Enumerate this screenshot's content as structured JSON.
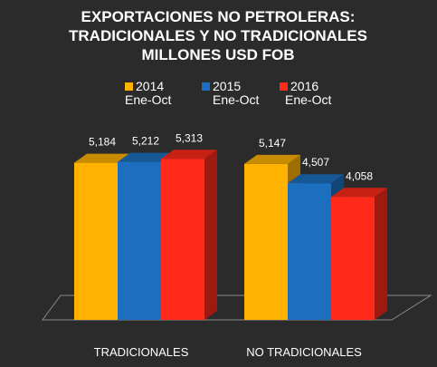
{
  "chart_data": {
    "type": "bar",
    "title": [
      "EXPORTACIONES NO PETROLERAS:",
      "TRADICIONALES Y NO TRADICIONALES",
      "MILLONES USD FOB"
    ],
    "categories": [
      "TRADICIONALES",
      "NO TRADICIONALES"
    ],
    "series": [
      {
        "name": "2014 Ene-Oct",
        "name_lines": [
          "2014",
          "Ene-Oct"
        ],
        "color": "#ffb300",
        "values": [
          5184,
          5147
        ],
        "labels": [
          "5,184",
          "5,147"
        ]
      },
      {
        "name": "2015 Ene-Oct",
        "name_lines": [
          "2015",
          "Ene-Oct"
        ],
        "color": "#1c6fbf",
        "values": [
          5212,
          4507
        ],
        "labels": [
          "5,212",
          "4,507"
        ]
      },
      {
        "name": "2016 Ene-Oct",
        "name_lines": [
          "2016",
          "Ene-Oct"
        ],
        "color": "#ff2a1a",
        "values": [
          5313,
          4058
        ],
        "labels": [
          "5,313",
          "4,058"
        ]
      }
    ],
    "ylim": [
      0,
      7000
    ],
    "legend_position": "top",
    "grid": false,
    "style": "3d-column"
  }
}
